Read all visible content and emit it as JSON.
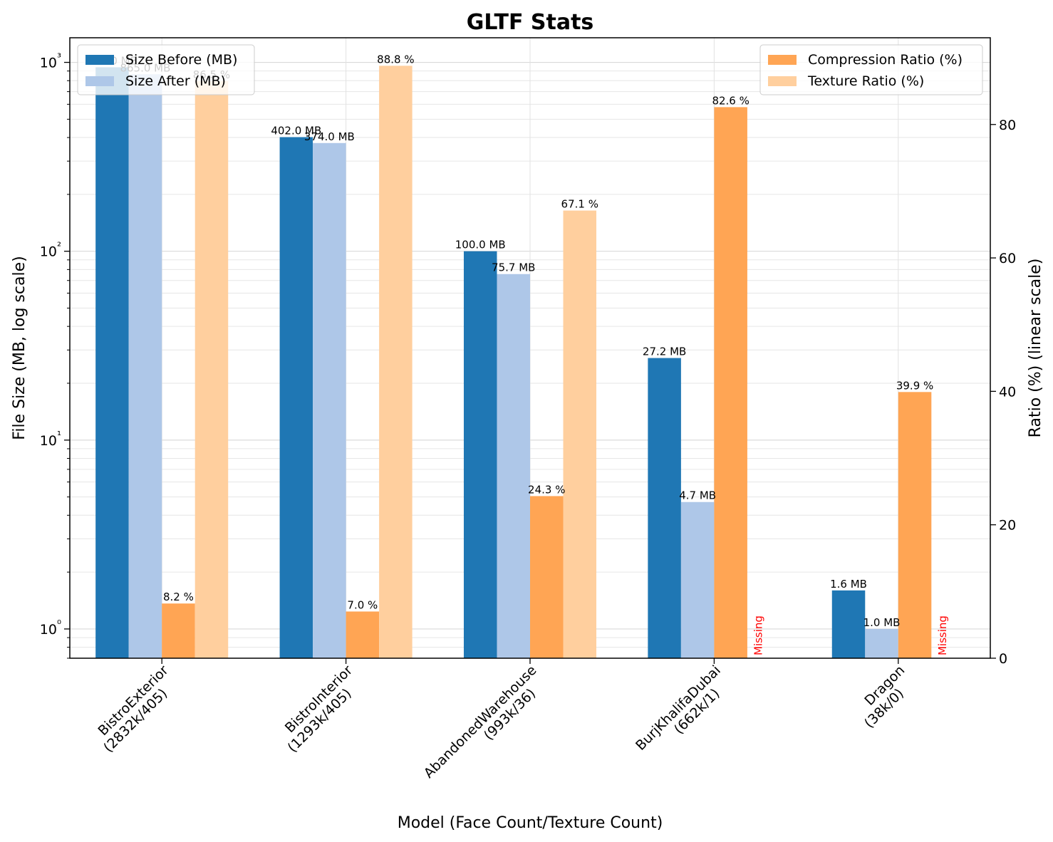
{
  "chart_data": {
    "type": "bar",
    "title": "GLTF Stats",
    "xlabel": "Model (Face Count/Texture Count)",
    "ylabel_left": "File Size (MB, log scale)",
    "ylabel_right": "Ratio (%) (linear scale)",
    "left_scale": "log",
    "right_scale": "linear",
    "ylim_left": [
      0.7,
      1350
    ],
    "ylim_right": [
      0,
      93
    ],
    "left_ticks": [
      1,
      10,
      100,
      1000
    ],
    "left_tick_labels": [
      "10⁰",
      "10¹",
      "10²",
      "10³"
    ],
    "right_ticks": [
      0,
      20,
      40,
      60,
      80
    ],
    "right_tick_labels": [
      "0",
      "20",
      "40",
      "60",
      "80"
    ],
    "grid": true,
    "categories": [
      {
        "line1": "BistroExterior",
        "line2": "(2832k/405)"
      },
      {
        "line1": "BistroInterior",
        "line2": "(1293k/405)"
      },
      {
        "line1": "AbandonedWarehouse",
        "line2": "(993k/36)"
      },
      {
        "line1": "BurjKhalifaDubai",
        "line2": "(662k/1)"
      },
      {
        "line1": "Dragon",
        "line2": "(38k/0)"
      }
    ],
    "series": [
      {
        "name": "Size Before (MB)",
        "axis": "left",
        "color": "#1f77b4",
        "values": [
          942.0,
          402.0,
          100.0,
          27.2,
          1.6
        ],
        "labels": [
          "942.0 MB",
          "402.0 MB",
          "100.0 MB",
          "27.2 MB",
          "1.6 MB"
        ]
      },
      {
        "name": "Size After (MB)",
        "axis": "left",
        "color": "#aec7e8",
        "values": [
          865.0,
          374.0,
          75.7,
          4.7,
          1.0
        ],
        "labels": [
          "865.0 MB",
          "374.0 MB",
          "75.7 MB",
          "4.7 MB",
          "1.0 MB"
        ]
      },
      {
        "name": "Compression Ratio (%)",
        "axis": "right",
        "color": "#ffa554",
        "values": [
          8.2,
          7.0,
          24.3,
          82.6,
          39.9
        ],
        "labels": [
          "8.2 %",
          "7.0 %",
          "24.3 %",
          "82.6 %",
          "39.9 %"
        ]
      },
      {
        "name": "Texture Ratio (%)",
        "axis": "right",
        "color": "#ffcf9e",
        "values": [
          86.5,
          88.8,
          67.1,
          null,
          null
        ],
        "labels": [
          "86.5 %",
          "88.8 %",
          "67.1 %",
          "Missing",
          "Missing"
        ]
      }
    ],
    "missing_color": "#ff0000",
    "legend": [
      {
        "placement": "top-left",
        "entries": [
          "Size Before (MB)",
          "Size After (MB)"
        ]
      },
      {
        "placement": "top-right",
        "entries": [
          "Compression Ratio (%)",
          "Texture Ratio (%)"
        ]
      }
    ]
  }
}
